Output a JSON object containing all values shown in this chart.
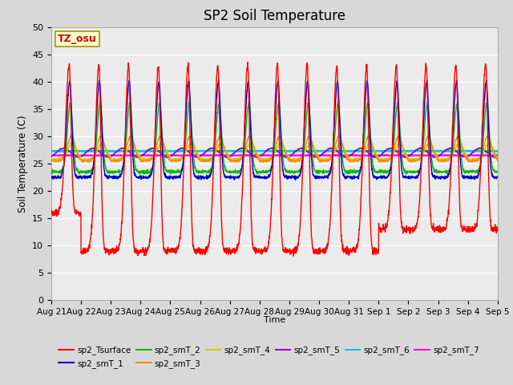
{
  "title": "SP2 Soil Temperature",
  "ylabel": "Soil Temperature (C)",
  "xlabel": "Time",
  "ylim": [
    0,
    50
  ],
  "yticks": [
    0,
    5,
    10,
    15,
    20,
    25,
    30,
    35,
    40,
    45,
    50
  ],
  "bg_color": "#d8d8d8",
  "plot_bg_color": "#ebebeb",
  "series_colors": {
    "sp2_Tsurface": "#ff0000",
    "sp2_smT_1": "#0000cc",
    "sp2_smT_2": "#00bb00",
    "sp2_smT_3": "#ff8800",
    "sp2_smT_4": "#cccc00",
    "sp2_smT_5": "#9900cc",
    "sp2_smT_6": "#00cccc",
    "sp2_smT_7": "#ff00ff"
  },
  "tz_label": "TZ_osu",
  "tz_color": "#cc0000",
  "tz_bg": "#ffffcc",
  "n_days": 15,
  "pts_per_day": 144,
  "xtick_labels": [
    "Aug 21",
    "Aug 22",
    "Aug 23",
    "Aug 24",
    "Aug 25",
    "Aug 26",
    "Aug 27",
    "Aug 28",
    "Aug 29",
    "Aug 30",
    "Aug 31",
    "Sep 1",
    "Sep 2",
    "Sep 3",
    "Sep 4",
    "Sep 5"
  ],
  "legend_entries": [
    "sp2_Tsurface",
    "sp2_smT_1",
    "sp2_smT_2",
    "sp2_smT_3",
    "sp2_smT_4",
    "sp2_smT_5",
    "sp2_smT_6",
    "sp2_smT_7"
  ]
}
